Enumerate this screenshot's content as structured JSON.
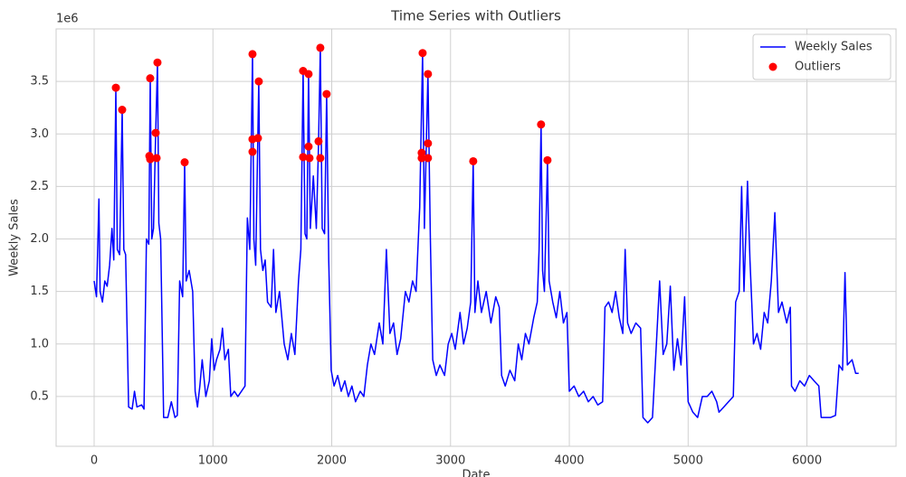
{
  "chart_data": {
    "type": "line",
    "title": "Time Series with Outliers",
    "xlabel": "Date",
    "ylabel": "Weekly Sales",
    "y_offset_label": "1e6",
    "xlim": [
      -320,
      6750
    ],
    "ylim": [
      0.026,
      4.0
    ],
    "xticks": [
      0,
      1000,
      2000,
      3000,
      4000,
      5000,
      6000
    ],
    "yticks": [
      0.5,
      {
        "value": 1,
        "label": "1.0"
      },
      1.5,
      {
        "value": 2,
        "label": "2.0"
      },
      2.5,
      {
        "value": 3,
        "label": "3.0"
      },
      3.5
    ],
    "grid": true,
    "legend": "upper right",
    "series": [
      {
        "name": "Weekly Sales",
        "type": "line",
        "color": "#0000ff",
        "x": [
          0,
          20,
          40,
          50,
          70,
          90,
          110,
          130,
          150,
          165,
          183,
          195,
          215,
          236,
          250,
          265,
          290,
          320,
          340,
          360,
          400,
          420,
          440,
          460,
          472,
          485,
          500,
          518,
          533,
          545,
          560,
          585,
          620,
          650,
          680,
          700,
          720,
          745,
          762,
          775,
          800,
          830,
          850,
          870,
          890,
          910,
          940,
          970,
          990,
          1010,
          1030,
          1060,
          1080,
          1100,
          1130,
          1150,
          1180,
          1210,
          1240,
          1270,
          1290,
          1310,
          1333,
          1345,
          1360,
          1386,
          1400,
          1420,
          1440,
          1460,
          1490,
          1510,
          1530,
          1560,
          1600,
          1630,
          1660,
          1690,
          1720,
          1740,
          1759,
          1775,
          1790,
          1805,
          1820,
          1845,
          1870,
          1889,
          1904,
          1920,
          1940,
          1957,
          1975,
          1995,
          2020,
          2050,
          2080,
          2110,
          2140,
          2170,
          2200,
          2240,
          2270,
          2300,
          2330,
          2360,
          2400,
          2430,
          2460,
          2490,
          2520,
          2550,
          2580,
          2620,
          2650,
          2680,
          2710,
          2740,
          2765,
          2780,
          2810,
          2830,
          2850,
          2880,
          2910,
          2950,
          2980,
          3010,
          3040,
          3080,
          3110,
          3140,
          3170,
          3191,
          3205,
          3230,
          3260,
          3300,
          3340,
          3380,
          3410,
          3430,
          3460,
          3500,
          3540,
          3570,
          3600,
          3630,
          3660,
          3700,
          3730,
          3745,
          3762,
          3775,
          3790,
          3816,
          3830,
          3860,
          3890,
          3920,
          3950,
          3980,
          4000,
          4040,
          4080,
          4120,
          4160,
          4200,
          4240,
          4280,
          4300,
          4330,
          4360,
          4390,
          4420,
          4450,
          4470,
          4490,
          4520,
          4560,
          4600,
          4620,
          4660,
          4700,
          4730,
          4760,
          4790,
          4820,
          4850,
          4880,
          4910,
          4940,
          4970,
          5000,
          5040,
          5080,
          5120,
          5160,
          5200,
          5240,
          5260,
          5300,
          5340,
          5380,
          5400,
          5430,
          5450,
          5470,
          5500,
          5520,
          5550,
          5580,
          5610,
          5640,
          5670,
          5700,
          5730,
          5760,
          5790,
          5830,
          5860,
          5870,
          5900,
          5940,
          5980,
          6020,
          6060,
          6100,
          6120,
          6160,
          6200,
          6240,
          6270,
          6300,
          6320,
          6340,
          6380,
          6410,
          6435
        ],
        "values": [
          1.6,
          1.45,
          2.38,
          1.5,
          1.4,
          1.6,
          1.55,
          1.75,
          2.1,
          1.8,
          3.44,
          1.9,
          1.85,
          3.23,
          1.9,
          1.85,
          0.4,
          0.38,
          0.55,
          0.4,
          0.42,
          0.38,
          2.0,
          1.95,
          3.53,
          2.0,
          2.1,
          3.01,
          3.68,
          2.15,
          2.0,
          0.3,
          0.3,
          0.45,
          0.3,
          0.32,
          1.6,
          1.45,
          2.73,
          1.6,
          1.7,
          1.5,
          0.55,
          0.4,
          0.6,
          0.85,
          0.5,
          0.65,
          1.05,
          0.75,
          0.85,
          0.95,
          1.15,
          0.85,
          0.95,
          0.5,
          0.55,
          0.5,
          0.55,
          0.6,
          2.2,
          1.9,
          3.76,
          2.0,
          1.75,
          3.5,
          1.9,
          1.7,
          1.8,
          1.4,
          1.35,
          1.9,
          1.3,
          1.5,
          1.0,
          0.85,
          1.1,
          0.9,
          1.6,
          1.9,
          3.6,
          2.05,
          2.0,
          3.57,
          2.1,
          2.6,
          2.1,
          2.93,
          3.82,
          2.1,
          2.05,
          3.38,
          1.8,
          0.75,
          0.6,
          0.7,
          0.55,
          0.65,
          0.5,
          0.6,
          0.45,
          0.55,
          0.5,
          0.8,
          1.0,
          0.9,
          1.2,
          1.0,
          1.9,
          1.1,
          1.2,
          0.9,
          1.05,
          1.5,
          1.4,
          1.6,
          1.5,
          2.3,
          3.77,
          2.1,
          3.57,
          2.0,
          0.85,
          0.7,
          0.8,
          0.7,
          1.0,
          1.1,
          0.95,
          1.3,
          1.0,
          1.15,
          1.4,
          2.74,
          1.3,
          1.6,
          1.3,
          1.5,
          1.2,
          1.45,
          1.35,
          0.7,
          0.6,
          0.75,
          0.65,
          1.0,
          0.85,
          1.1,
          1.0,
          1.25,
          1.4,
          1.9,
          3.09,
          1.7,
          1.5,
          2.75,
          1.6,
          1.4,
          1.25,
          1.5,
          1.2,
          1.3,
          0.55,
          0.6,
          0.5,
          0.55,
          0.45,
          0.5,
          0.42,
          0.45,
          1.35,
          1.4,
          1.3,
          1.5,
          1.25,
          1.1,
          1.9,
          1.2,
          1.1,
          1.2,
          1.15,
          0.3,
          0.25,
          0.3,
          0.95,
          1.6,
          0.9,
          1.0,
          1.55,
          0.75,
          1.05,
          0.8,
          1.45,
          0.45,
          0.35,
          0.3,
          0.5,
          0.5,
          0.55,
          0.45,
          0.35,
          0.4,
          0.45,
          0.5,
          1.4,
          1.5,
          2.5,
          1.5,
          2.55,
          1.8,
          1.0,
          1.1,
          0.95,
          1.3,
          1.2,
          1.6,
          2.25,
          1.3,
          1.4,
          1.2,
          1.35,
          0.6,
          0.55,
          0.65,
          0.6,
          0.7,
          0.65,
          0.6,
          0.3,
          0.3,
          0.3,
          0.32,
          0.8,
          0.75,
          1.68,
          0.8,
          0.85,
          0.72,
          0.72
        ]
      },
      {
        "name": "Outliers",
        "type": "scatter",
        "color": "#ff0000",
        "x": [
          183,
          236,
          472,
          465,
          472,
          518,
          533,
          526,
          762,
          1333,
          1333,
          1333,
          1379,
          1386,
          1759,
          1759,
          1805,
          1805,
          1813,
          1889,
          1904,
          1904,
          1957,
          2765,
          2757,
          2757,
          2810,
          2810,
          2810,
          3191,
          3762,
          3816
        ],
        "values": [
          3.44,
          3.23,
          3.53,
          2.79,
          2.76,
          3.01,
          3.68,
          2.77,
          2.73,
          3.76,
          2.95,
          2.83,
          2.96,
          3.5,
          3.6,
          2.78,
          3.57,
          2.88,
          2.77,
          2.93,
          2.77,
          3.82,
          3.38,
          3.77,
          2.82,
          2.77,
          3.57,
          2.91,
          2.77,
          2.74,
          3.09,
          2.75
        ]
      }
    ]
  }
}
